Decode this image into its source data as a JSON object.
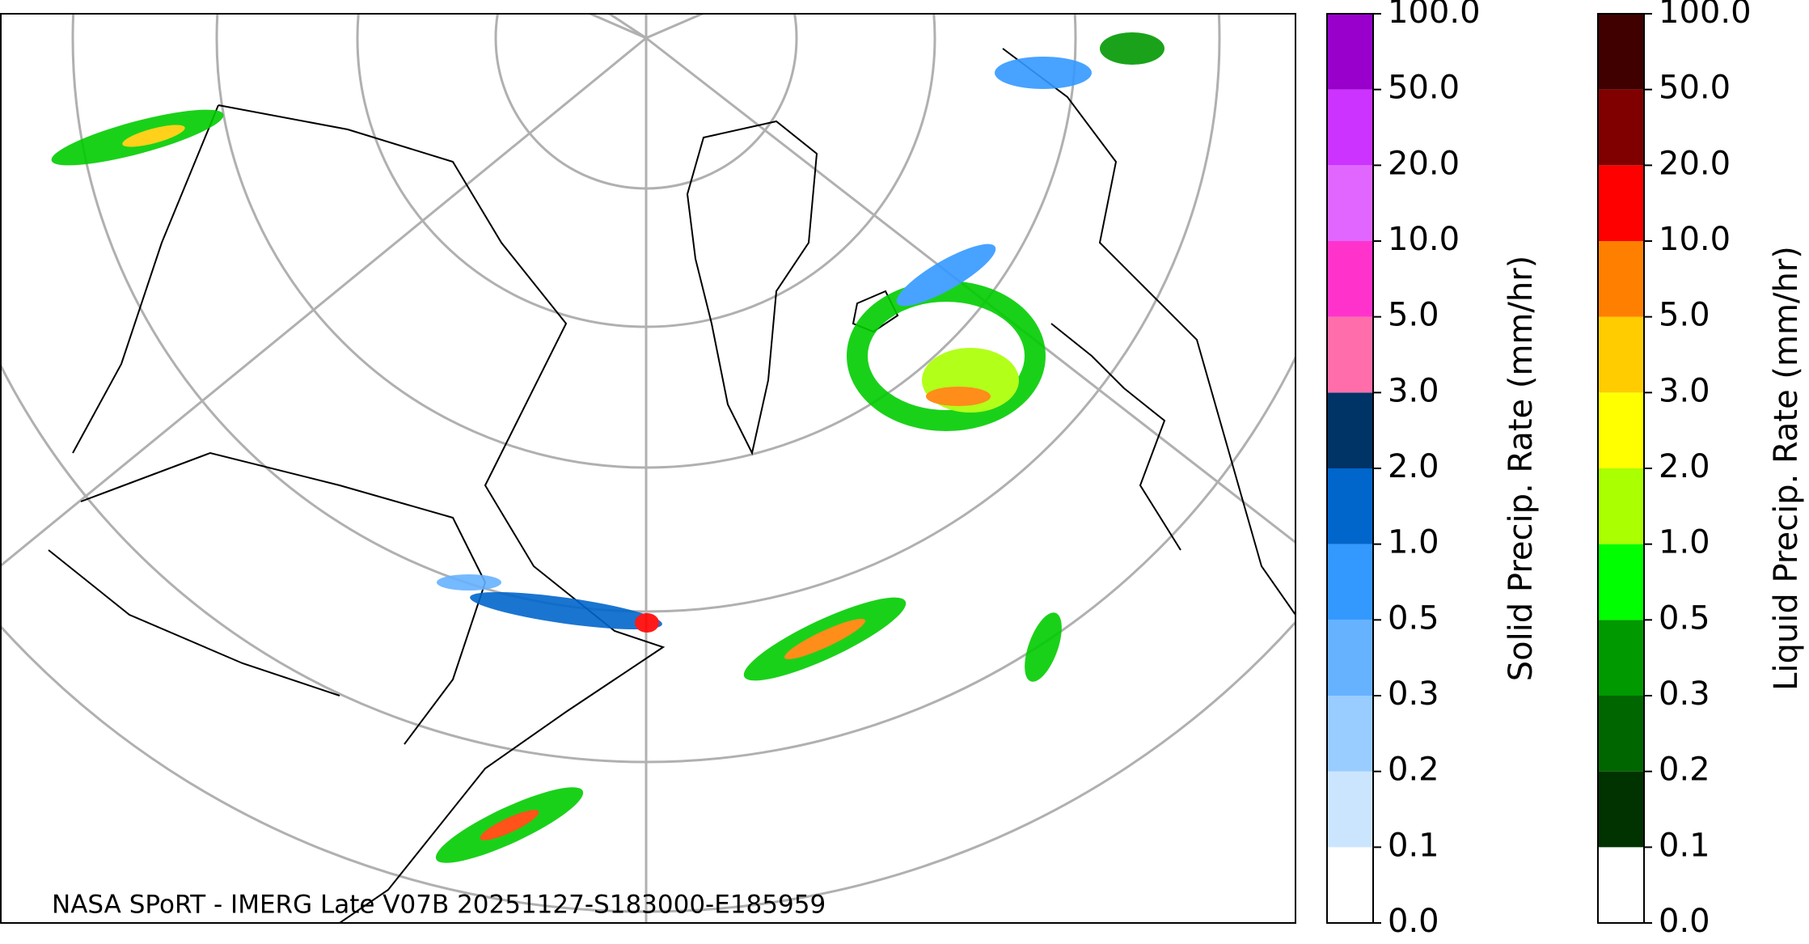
{
  "map": {
    "credit": "NASA SPoRT - IMERG Late V07B 20251127-S183000-E185959"
  },
  "colorbars": [
    {
      "label": "Solid Precip. Rate (mm/hr)",
      "ticks": [
        {
          "value": 0,
          "label": "0.0"
        },
        {
          "value": 0.1,
          "label": "0.1"
        },
        {
          "value": 0.2,
          "label": "0.2"
        },
        {
          "value": 0.3,
          "label": "0.3"
        },
        {
          "value": 0.5,
          "label": "0.5"
        },
        {
          "value": 1,
          "label": "1.0"
        },
        {
          "value": 2,
          "label": "2.0"
        },
        {
          "value": 3,
          "label": "3.0"
        },
        {
          "value": 5,
          "label": "5.0"
        },
        {
          "value": 10,
          "label": "10.0"
        },
        {
          "value": 20,
          "label": "20.0"
        },
        {
          "value": 50,
          "label": "50.0"
        },
        {
          "value": 100,
          "label": "100.0"
        }
      ],
      "colors": [
        "#ffffff",
        "#cce5ff",
        "#99ccff",
        "#66b2ff",
        "#3399ff",
        "#0066cc",
        "#003366",
        "#ff6eaa",
        "#ff33cc",
        "#e066ff",
        "#cc33ff",
        "#9900cc"
      ]
    },
    {
      "label": "Liquid Precip. Rate (mm/hr)",
      "ticks": [
        {
          "value": 0,
          "label": "0.0"
        },
        {
          "value": 0.1,
          "label": "0.1"
        },
        {
          "value": 0.2,
          "label": "0.2"
        },
        {
          "value": 0.3,
          "label": "0.3"
        },
        {
          "value": 0.5,
          "label": "0.5"
        },
        {
          "value": 1,
          "label": "1.0"
        },
        {
          "value": 2,
          "label": "2.0"
        },
        {
          "value": 3,
          "label": "3.0"
        },
        {
          "value": 5,
          "label": "5.0"
        },
        {
          "value": 10,
          "label": "10.0"
        },
        {
          "value": 20,
          "label": "20.0"
        },
        {
          "value": 50,
          "label": "50.0"
        },
        {
          "value": 100,
          "label": "100.0"
        }
      ],
      "colors": [
        "#ffffff",
        "#003300",
        "#006600",
        "#009900",
        "#00ff00",
        "#aaff00",
        "#ffff00",
        "#ffcc00",
        "#ff8000",
        "#ff0000",
        "#800000",
        "#400000"
      ]
    }
  ]
}
